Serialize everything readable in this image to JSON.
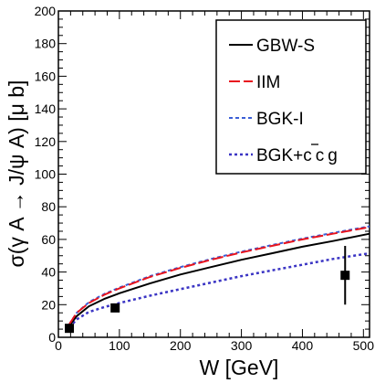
{
  "chart_data": {
    "type": "line",
    "xlabel": "W [GeV]",
    "ylabel": "σ(γ A → J/ψ A) [μ b]",
    "xlim": [
      0,
      510
    ],
    "ylim": [
      0,
      200
    ],
    "x_ticks": [
      0,
      100,
      200,
      300,
      400,
      500
    ],
    "y_ticks": [
      0,
      20,
      40,
      60,
      80,
      100,
      120,
      140,
      160,
      180,
      200
    ],
    "x_tick_labels": [
      "0",
      "100",
      "200",
      "300",
      "400",
      "500"
    ],
    "y_tick_labels": [
      "0",
      "20",
      "40",
      "60",
      "80",
      "100",
      "120",
      "140",
      "160",
      "180",
      "200"
    ],
    "grid": false,
    "legend_position": "top-right",
    "legend_bgk_charm_text": "BGK+c",
    "legend_bgk_charm_bar": "c",
    "legend_bgk_charm_g": "g",
    "series": [
      {
        "name": "GBW-S",
        "color": "#000000",
        "dash": "solid",
        "x": [
          18,
          30,
          50,
          75,
          100,
          150,
          200,
          250,
          300,
          350,
          400,
          450,
          510
        ],
        "y": [
          7,
          13,
          19,
          23.5,
          27,
          33,
          38.5,
          43,
          47.5,
          51.5,
          55.5,
          59,
          63.5
        ]
      },
      {
        "name": "IIM",
        "color": "#e8141e",
        "dash": "long-dash",
        "x": [
          18,
          30,
          50,
          75,
          100,
          150,
          200,
          250,
          300,
          350,
          400,
          450,
          510
        ],
        "y": [
          8,
          15,
          21,
          26,
          30,
          37,
          42.5,
          47.5,
          52,
          56,
          60,
          63.5,
          67.5
        ]
      },
      {
        "name": "BGK-I",
        "color": "#3b5fd6",
        "dash": "short-dash",
        "x": [
          18,
          30,
          50,
          75,
          100,
          150,
          200,
          250,
          300,
          350,
          400,
          450,
          510
        ],
        "y": [
          8,
          15,
          21.5,
          26.5,
          30.5,
          37.5,
          43,
          48,
          52.5,
          56.5,
          60.5,
          64,
          68
        ]
      },
      {
        "name": "BGK+c c̄ g",
        "color": "#3b35c4",
        "dash": "dotted",
        "x": [
          18,
          30,
          50,
          75,
          100,
          150,
          200,
          250,
          300,
          350,
          400,
          450,
          510
        ],
        "y": [
          6,
          11,
          15.5,
          18.5,
          21,
          25.5,
          29.5,
          33.5,
          37.5,
          41,
          44.5,
          48,
          51.5
        ]
      }
    ],
    "data_points": [
      {
        "x": 18,
        "y": 5.5,
        "err": 0
      },
      {
        "x": 93,
        "y": 18,
        "err": 0
      },
      {
        "x": 470,
        "y": 38,
        "err": 18
      }
    ]
  }
}
